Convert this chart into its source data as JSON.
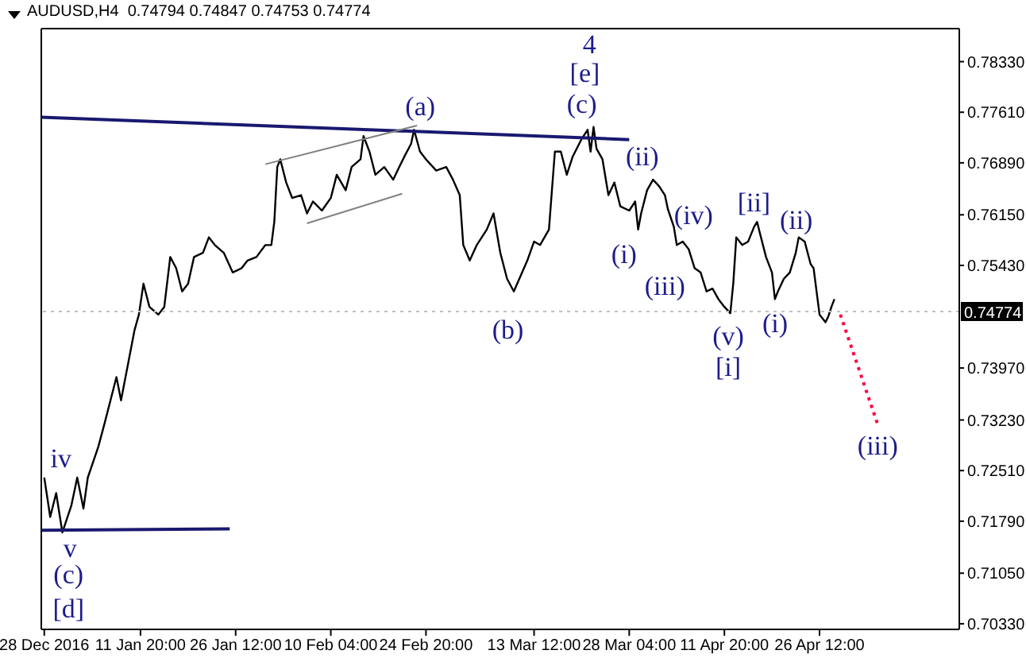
{
  "chart_data": {
    "type": "line",
    "title": "AUDUSD,H4  0.74794 0.74847 0.74753 0.74774",
    "xlim": [
      "2016-12-27T13:00",
      "2017-05-18T01:00"
    ],
    "xticks": [
      {
        "value": "2016-12-28",
        "label": "28 Dec 2016"
      },
      {
        "value": "2017-01-11T20:00",
        "label": "11 Jan 20:00"
      },
      {
        "value": "2017-01-26T12:00",
        "label": "26 Jan 12:00"
      },
      {
        "value": "2017-02-10T04:00",
        "label": "10 Feb 04:00"
      },
      {
        "value": "2017-02-24T20:00",
        "label": "24 Feb 20:00"
      },
      {
        "value": "2017-03-13T12:00",
        "label": "13 Mar 12:00"
      },
      {
        "value": "2017-03-28T04:00",
        "label": "28 Mar 04:00"
      },
      {
        "value": "2017-04-11T20:00",
        "label": "11 Apr 20:00"
      },
      {
        "value": "2017-04-26T12:00",
        "label": "26 Apr 12:00"
      }
    ],
    "ylim": [
      0.7025,
      0.788
    ],
    "yticks": [
      {
        "value": 0.7033,
        "label": "0.70330"
      },
      {
        "value": 0.7105,
        "label": "0.71050"
      },
      {
        "value": 0.7179,
        "label": "0.71790"
      },
      {
        "value": 0.7251,
        "label": "0.72510"
      },
      {
        "value": 0.7323,
        "label": "0.73230"
      },
      {
        "value": 0.7397,
        "label": "0.73970"
      },
      {
        "value": 0.7543,
        "label": "0.75430"
      },
      {
        "value": 0.7615,
        "label": "0.76150"
      },
      {
        "value": 0.7689,
        "label": "0.76890"
      },
      {
        "value": 0.7761,
        "label": "0.77610"
      },
      {
        "value": 0.7833,
        "label": "0.78330"
      }
    ],
    "grid": false,
    "marker": "none",
    "ref_lines": [
      {
        "axis": "y",
        "value": 0.74774,
        "label": "0.74774",
        "color": "#c0c0c0"
      }
    ],
    "series": [
      {
        "type": "line",
        "color": "#000000",
        "line_style": "solid",
        "x": [
          "2016-12-28T00:00",
          "2016-12-28T22:00",
          "2016-12-29T20:00",
          "2016-12-30T19:00",
          "2017-01-01T04:00",
          "2017-01-02T02:00",
          "2017-01-03T01:00",
          "2017-01-03T17:00",
          "2017-01-05T08:00",
          "2017-01-06T07:00",
          "2017-01-07T05:00",
          "2017-01-08T03:00",
          "2017-01-08T20:00",
          "2017-01-10T00:00",
          "2017-01-10T22:00",
          "2017-01-11T14:00",
          "2017-01-12T07:00",
          "2017-01-13T05:00",
          "2017-01-14T14:00",
          "2017-01-15T12:00",
          "2017-01-16T10:00",
          "2017-01-17T08:00",
          "2017-01-18T06:00",
          "2017-01-19T04:00",
          "2017-01-20T02:00",
          "2017-01-21T11:00",
          "2017-01-22T09:00",
          "2017-01-23T07:00",
          "2017-01-24T16:00",
          "2017-01-26T01:00",
          "2017-01-27T10:00",
          "2017-01-28T08:00",
          "2017-01-29T17:00",
          "2017-01-31T02:00",
          "2017-02-01T00:00",
          "2017-02-01T11:00",
          "2017-02-01T22:00",
          "2017-02-02T09:00",
          "2017-02-03T07:00",
          "2017-02-04T05:00",
          "2017-02-05T14:00",
          "2017-02-06T12:00",
          "2017-02-07T10:00",
          "2017-02-08T19:00",
          "2017-02-10T04:00",
          "2017-02-11T02:00",
          "2017-02-12T11:00",
          "2017-02-13T09:00",
          "2017-02-14T18:00",
          "2017-02-15T05:00",
          "2017-02-16T03:00",
          "2017-02-17T01:00",
          "2017-02-18T10:00",
          "2017-02-19T19:00",
          "2017-02-20T17:00",
          "2017-02-21T15:00",
          "2017-02-22T13:00",
          "2017-02-23T00:00",
          "2017-02-23T22:00",
          "2017-02-24T20:00",
          "2017-02-26T10:00",
          "2017-02-27T23:00",
          "2017-03-01T00:00",
          "2017-03-02T01:00",
          "2017-03-02T14:00",
          "2017-03-03T14:00",
          "2017-03-04T16:00",
          "2017-03-06T05:00",
          "2017-03-07T06:00",
          "2017-03-08T07:00",
          "2017-03-09T08:00",
          "2017-03-10T09:00",
          "2017-03-11T10:00",
          "2017-03-12T11:00",
          "2017-03-13T12:00",
          "2017-03-14T10:00",
          "2017-03-15T19:00",
          "2017-03-16T06:00",
          "2017-03-16T17:00",
          "2017-03-17T15:00",
          "2017-03-18T13:00",
          "2017-03-19T11:00",
          "2017-03-20T20:00",
          "2017-03-21T18:00",
          "2017-03-22T05:00",
          "2017-03-22T16:00",
          "2017-03-23T03:00",
          "2017-03-24T01:00",
          "2017-03-24T23:00",
          "2017-03-25T21:00",
          "2017-03-26T19:00",
          "2017-03-28T04:00",
          "2017-03-29T02:00",
          "2017-03-29T13:00",
          "2017-03-30T00:00",
          "2017-03-30T22:00",
          "2017-03-31T20:00",
          "2017-04-01T18:00",
          "2017-04-02T16:00",
          "2017-04-03T03:00",
          "2017-04-04T01:00",
          "2017-04-04T12:00",
          "2017-04-05T10:00",
          "2017-04-06T08:00",
          "2017-04-07T06:00",
          "2017-04-08T04:00",
          "2017-04-09T02:00",
          "2017-04-10T00:00",
          "2017-04-10T22:00",
          "2017-04-11T20:00",
          "2017-04-12T18:00",
          "2017-04-13T05:00",
          "2017-04-13T16:00",
          "2017-04-14T14:00",
          "2017-04-15T12:00",
          "2017-04-16T10:00",
          "2017-04-16T21:00",
          "2017-04-17T08:00",
          "2017-04-18T06:00",
          "2017-04-19T04:00",
          "2017-04-19T15:00",
          "2017-04-20T02:00",
          "2017-04-21T00:00",
          "2017-04-21T22:00",
          "2017-04-22T20:00",
          "2017-04-23T07:00",
          "2017-04-24T05:00",
          "2017-04-25T03:00",
          "2017-04-25T14:00",
          "2017-04-26T01:00",
          "2017-04-26T12:00",
          "2017-04-27T10:00",
          "2017-04-27T21:00",
          "2017-04-28T08:00",
          "2017-04-28T19:00"
        ],
        "values": [
          0.7241,
          0.7185,
          0.7219,
          0.7163,
          0.7201,
          0.7241,
          0.7197,
          0.7241,
          0.7285,
          0.7318,
          0.7351,
          0.7384,
          0.7351,
          0.7407,
          0.7451,
          0.7473,
          0.7517,
          0.7484,
          0.7473,
          0.7484,
          0.7555,
          0.7539,
          0.7506,
          0.7517,
          0.7555,
          0.7561,
          0.7583,
          0.7572,
          0.7561,
          0.7533,
          0.7539,
          0.755,
          0.7555,
          0.7572,
          0.7572,
          0.7605,
          0.7683,
          0.7694,
          0.7661,
          0.7639,
          0.7643,
          0.7617,
          0.7634,
          0.7621,
          0.7639,
          0.7672,
          0.765,
          0.7683,
          0.7694,
          0.7727,
          0.7705,
          0.7672,
          0.7683,
          0.7665,
          0.7683,
          0.77,
          0.7716,
          0.7736,
          0.7705,
          0.7694,
          0.7678,
          0.7683,
          0.7665,
          0.7643,
          0.7572,
          0.755,
          0.7572,
          0.7594,
          0.7617,
          0.7561,
          0.7524,
          0.7506,
          0.7528,
          0.755,
          0.7577,
          0.7572,
          0.7594,
          0.765,
          0.7705,
          0.7705,
          0.7672,
          0.7698,
          0.7723,
          0.7736,
          0.7705,
          0.774,
          0.7709,
          0.7694,
          0.7643,
          0.7661,
          0.7627,
          0.7621,
          0.7634,
          0.7594,
          0.7617,
          0.765,
          0.7665,
          0.7656,
          0.7643,
          0.7623,
          0.7598,
          0.7572,
          0.7577,
          0.7566,
          0.7539,
          0.7533,
          0.7506,
          0.751,
          0.7495,
          0.7484,
          0.7475,
          0.7518,
          0.7583,
          0.7572,
          0.7577,
          0.7598,
          0.7605,
          0.7588,
          0.7555,
          0.7533,
          0.7495,
          0.7506,
          0.7524,
          0.7533,
          0.7561,
          0.7583,
          0.7577,
          0.7545,
          0.7539,
          0.7506,
          0.7473,
          0.7462,
          0.7471,
          0.7484,
          0.7495
        ]
      },
      {
        "type": "line",
        "color": "#191970",
        "line_style": "solid",
        "x": [
          "2016-12-27T13:00",
          "2017-03-28T04:00"
        ],
        "values": [
          0.7754,
          0.7722
        ]
      },
      {
        "type": "line",
        "color": "#191970",
        "line_style": "solid",
        "x": [
          "2016-12-27T13:00",
          "2017-01-25T14:00"
        ],
        "values": [
          0.7166,
          0.7168
        ]
      },
      {
        "type": "line",
        "color": "#808080",
        "line_style": "solid",
        "x": [
          "2017-01-31T02:00",
          "2017-02-23T11:00"
        ],
        "values": [
          0.7687,
          0.7742
        ]
      },
      {
        "type": "line",
        "color": "#808080",
        "line_style": "solid",
        "x": [
          "2017-02-06T12:00",
          "2017-02-21T04:00"
        ],
        "values": [
          0.7603,
          0.7645
        ]
      },
      {
        "type": "line",
        "color": "#ff0040",
        "line_style": "dotted",
        "x": [
          "2017-04-29T17:00",
          "2017-05-05T10:00"
        ],
        "values": [
          0.7473,
          0.7318
        ]
      }
    ],
    "annotations": [
      "4",
      "[e]",
      "(c)",
      "(a)",
      "(b)",
      "(ii)",
      "(i)",
      "(iv)",
      "(iii)",
      "[ii]",
      "(ii)",
      "(i)",
      "(v)",
      "[i]",
      "(iii)",
      "iv",
      "v",
      "(c)",
      "[d]"
    ]
  }
}
